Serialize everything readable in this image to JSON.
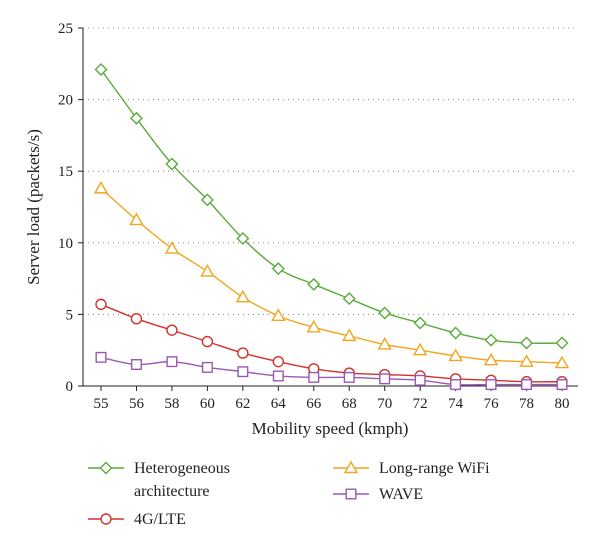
{
  "chart_data": {
    "type": "line",
    "title": "",
    "xlabel": "Mobility speed (kmph)",
    "ylabel": "Server load (packets/s)",
    "categories": [
      "55",
      "56",
      "58",
      "60",
      "62",
      "64",
      "66",
      "68",
      "70",
      "72",
      "74",
      "76",
      "78",
      "80"
    ],
    "ylim": [
      0,
      25
    ],
    "yticks": [
      "0",
      "5",
      "10",
      "15",
      "20",
      "25"
    ],
    "grid": true,
    "legend_position": "bottom",
    "series": [
      {
        "name": "Heterogeneous architecture",
        "legend_lines": [
          "Heterogeneous",
          "architecture"
        ],
        "color": "#5aab3c",
        "marker": "diamond",
        "values": [
          22.1,
          18.7,
          15.5,
          13.0,
          10.3,
          8.2,
          7.1,
          6.1,
          5.1,
          4.4,
          3.7,
          3.2,
          3.0,
          3.0
        ]
      },
      {
        "name": "4G/LTE",
        "legend_lines": [
          "4G/LTE"
        ],
        "color": "#d0322b",
        "marker": "circle",
        "values": [
          5.7,
          4.7,
          3.9,
          3.1,
          2.3,
          1.7,
          1.2,
          0.9,
          0.8,
          0.7,
          0.5,
          0.4,
          0.3,
          0.3
        ]
      },
      {
        "name": "Long-range WiFi",
        "legend_lines": [
          "Long-range WiFi"
        ],
        "color": "#f2a51b",
        "marker": "triangle",
        "values": [
          13.8,
          11.6,
          9.6,
          8.0,
          6.2,
          4.9,
          4.1,
          3.5,
          2.9,
          2.5,
          2.1,
          1.8,
          1.7,
          1.6
        ]
      },
      {
        "name": "WAVE",
        "legend_lines": [
          "WAVE"
        ],
        "color": "#9a58b5",
        "marker": "square",
        "values": [
          2.0,
          1.5,
          1.7,
          1.3,
          1.0,
          0.7,
          0.6,
          0.6,
          0.5,
          0.4,
          0.1,
          0.1,
          0.1,
          0.1
        ]
      }
    ]
  }
}
